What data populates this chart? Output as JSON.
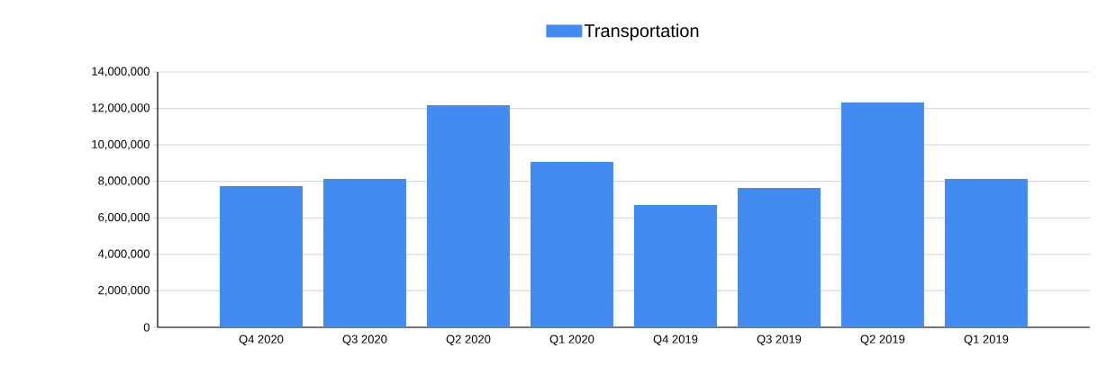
{
  "chart_data": {
    "type": "bar",
    "categories": [
      "Q4 2020",
      "Q3 2020",
      "Q2 2020",
      "Q1 2020",
      "Q4 2019",
      "Q3 2019",
      "Q2 2019",
      "Q1 2019"
    ],
    "series": [
      {
        "name": "Transportation",
        "color": "#428bf0",
        "values": [
          7740000,
          8130000,
          12180000,
          9070000,
          6700000,
          7640000,
          12320000,
          8130000
        ]
      }
    ],
    "ylim": [
      0,
      14000000
    ],
    "yticks": [
      {
        "value": 0,
        "label": "0"
      },
      {
        "value": 2000000,
        "label": "2,000,000"
      },
      {
        "value": 4000000,
        "label": "4,000,000"
      },
      {
        "value": 6000000,
        "label": "6,000,000"
      },
      {
        "value": 8000000,
        "label": "8,000,000"
      },
      {
        "value": 10000000,
        "label": "10,000,000"
      },
      {
        "value": 12000000,
        "label": "12,000,000"
      },
      {
        "value": 14000000,
        "label": "14,000,000"
      }
    ],
    "grid": "y",
    "legend": "top"
  }
}
